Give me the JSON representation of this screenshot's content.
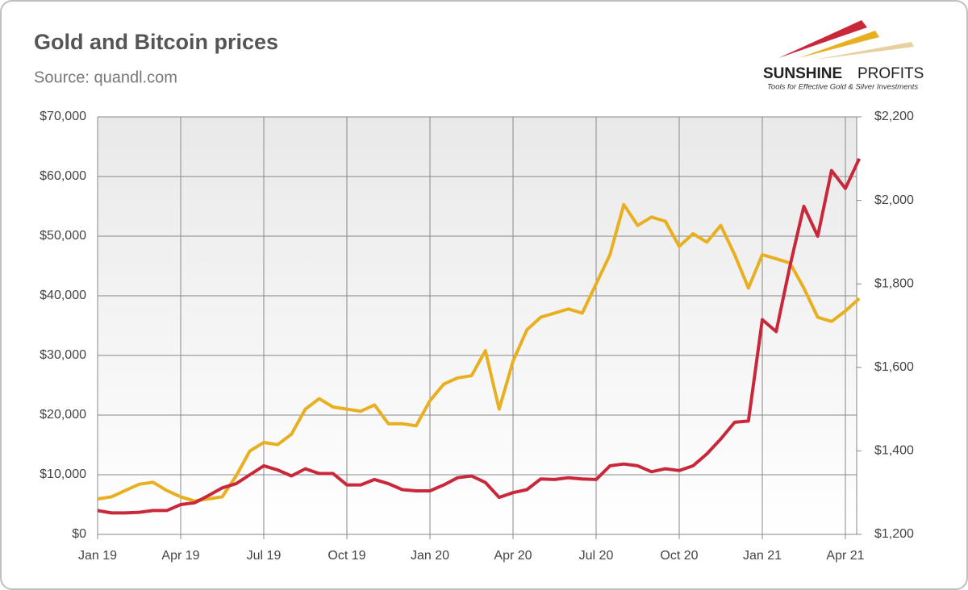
{
  "chart_data": {
    "type": "line",
    "title": "Gold and Bitcoin prices",
    "subtitle": "Source: quandl.com",
    "logo": {
      "brand": "SUNSHINE",
      "brand2": "PROFITS",
      "tagline": "Tools for Effective Gold & Silver Investments"
    },
    "categories": [
      "Jan 19",
      null,
      null,
      null,
      null,
      null,
      "Apr 19",
      null,
      null,
      null,
      null,
      null,
      "Jul 19",
      null,
      null,
      null,
      null,
      null,
      "Oct 19",
      null,
      null,
      null,
      null,
      null,
      "Jan 20",
      null,
      null,
      null,
      null,
      null,
      "Apr 20",
      null,
      null,
      null,
      null,
      null,
      "Jul 20",
      null,
      null,
      null,
      null,
      null,
      "Oct 20",
      null,
      null,
      null,
      null,
      null,
      "Jan 21",
      null,
      null,
      null,
      null,
      null,
      "Apr 21",
      null
    ],
    "series": [
      {
        "name": "Bitcoin",
        "color": "#c8283a",
        "axis": "y",
        "values": [
          4000,
          3600,
          3600,
          3700,
          4000,
          4000,
          5000,
          5300,
          6500,
          7800,
          8500,
          10000,
          11500,
          10800,
          9800,
          11000,
          10200,
          10200,
          8300,
          8300,
          9200,
          8500,
          7500,
          7300,
          7300,
          8300,
          9500,
          9800,
          8700,
          6200,
          7000,
          7500,
          9300,
          9200,
          9500,
          9300,
          9200,
          11500,
          11800,
          11500,
          10500,
          11000,
          10700,
          11500,
          13500,
          16000,
          18800,
          19000,
          36000,
          34000,
          45000,
          55000,
          50000,
          61000,
          58000,
          63000
        ]
      },
      {
        "name": "Gold",
        "color": "#e8b020",
        "axis": "y2",
        "values": [
          1285,
          1290,
          1305,
          1320,
          1325,
          1305,
          1290,
          1280,
          1285,
          1290,
          1340,
          1400,
          1420,
          1415,
          1440,
          1500,
          1525,
          1505,
          1500,
          1495,
          1510,
          1465,
          1465,
          1460,
          1520,
          1560,
          1575,
          1580,
          1640,
          1500,
          1615,
          1690,
          1720,
          1730,
          1740,
          1730,
          1800,
          1870,
          1990,
          1940,
          1960,
          1950,
          1890,
          1920,
          1900,
          1940,
          1870,
          1790,
          1870,
          1860,
          1850,
          1790,
          1720,
          1710,
          1735,
          1765
        ]
      }
    ],
    "ylim": [
      0,
      70000
    ],
    "yticks": [
      {
        "value": 0,
        "label": "$0"
      },
      {
        "value": 10000,
        "label": "$10,000"
      },
      {
        "value": 20000,
        "label": "$20,000"
      },
      {
        "value": 30000,
        "label": "$30,000"
      },
      {
        "value": 40000,
        "label": "$40,000"
      },
      {
        "value": 50000,
        "label": "$50,000"
      },
      {
        "value": 60000,
        "label": "$60,000"
      },
      {
        "value": 70000,
        "label": "$70,000"
      }
    ],
    "y2lim": [
      1200,
      2200
    ],
    "y2ticks": [
      {
        "value": 1200,
        "label": "$1,200"
      },
      {
        "value": 1400,
        "label": "$1,400"
      },
      {
        "value": 1600,
        "label": "$1,600"
      },
      {
        "value": 1800,
        "label": "$1,800"
      },
      {
        "value": 2000,
        "label": "$2,000"
      },
      {
        "value": 2200,
        "label": "$2,200"
      }
    ],
    "grid": true
  }
}
